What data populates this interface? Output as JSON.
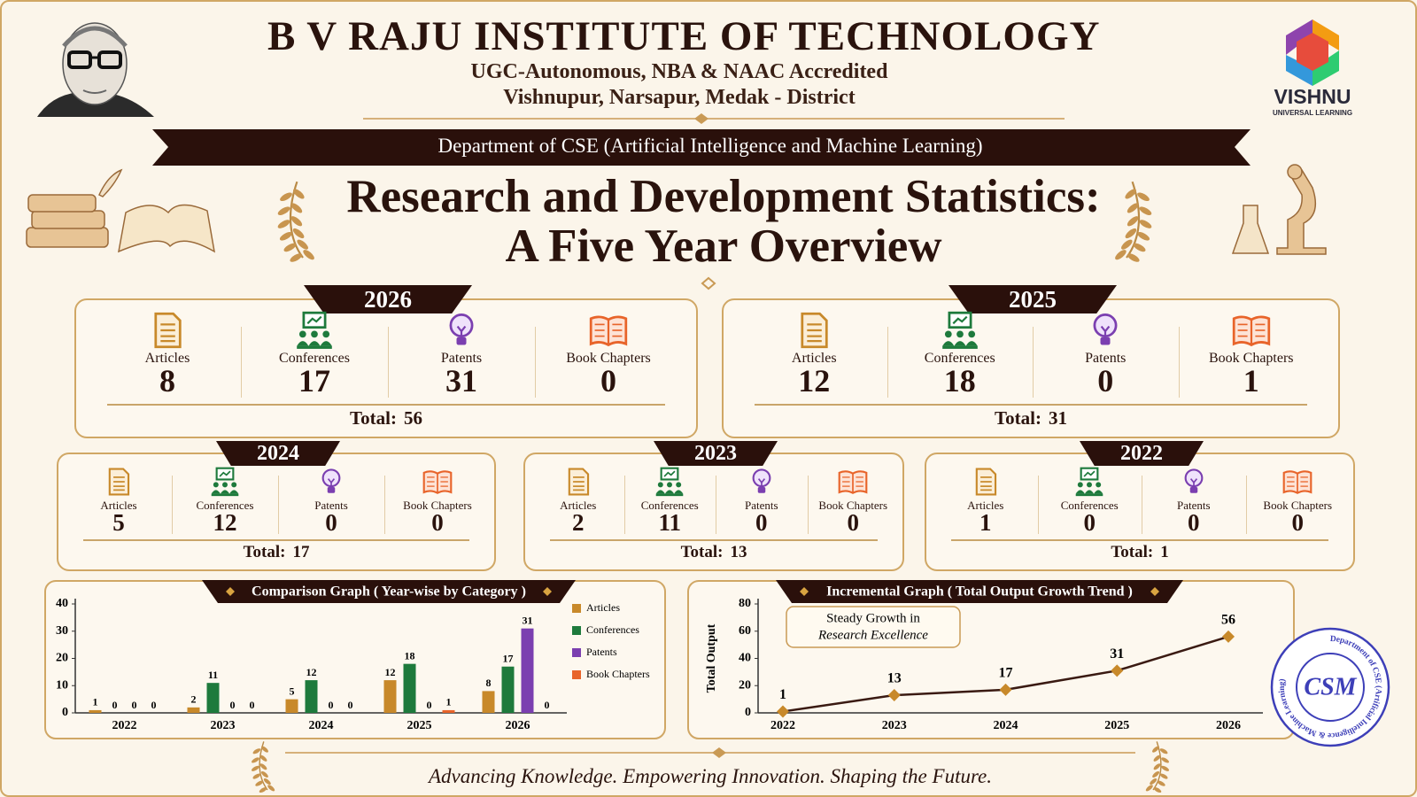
{
  "header": {
    "title": "B V RAJU INSTITUTE OF TECHNOLOGY",
    "accreditation": "UGC-Autonomous, NBA & NAAC Accredited",
    "address": "Vishnupur, Narsapur, Medak - District",
    "department": "Department of CSE (Artificial Intelligence and Machine Learning)",
    "main_title": [
      "Research and Development Statistics:",
      "A Five Year Overview"
    ]
  },
  "logo": {
    "name": "VISHNU",
    "tagline": "UNIVERSAL LEARNING"
  },
  "years": [
    {
      "year": "2026",
      "items": [
        {
          "label": "Articles",
          "value": 8
        },
        {
          "label": "Conferences",
          "value": 17
        },
        {
          "label": "Patents",
          "value": 31
        },
        {
          "label": "Book Chapters",
          "value": 0
        }
      ],
      "total_label": "Total:",
      "total": 56
    },
    {
      "year": "2025",
      "items": [
        {
          "label": "Articles",
          "value": 12
        },
        {
          "label": "Conferences",
          "value": 18
        },
        {
          "label": "Patents",
          "value": 0
        },
        {
          "label": "Book Chapters",
          "value": 1
        }
      ],
      "total_label": "Total:",
      "total": 31
    },
    {
      "year": "2024",
      "items": [
        {
          "label": "Articles",
          "value": 5
        },
        {
          "label": "Conferences",
          "value": 12
        },
        {
          "label": "Patents",
          "value": 0
        },
        {
          "label": "Book Chapters",
          "value": 0
        }
      ],
      "total_label": "Total:",
      "total": 17
    },
    {
      "year": "2023",
      "items": [
        {
          "label": "Articles",
          "value": 2
        },
        {
          "label": "Conferences",
          "value": 11
        },
        {
          "label": "Patents",
          "value": 0
        },
        {
          "label": "Book Chapters",
          "value": 0
        }
      ],
      "total_label": "Total:",
      "total": 13
    },
    {
      "year": "2022",
      "items": [
        {
          "label": "Articles",
          "value": 1
        },
        {
          "label": "Conferences",
          "value": 0
        },
        {
          "label": "Patents",
          "value": 0
        },
        {
          "label": "Book Chapters",
          "value": 0
        }
      ],
      "total_label": "Total:",
      "total": 1
    }
  ],
  "chart_data": [
    {
      "type": "bar",
      "title": "Comparison Graph ( Year-wise by Category )",
      "categories": [
        "2022",
        "2023",
        "2024",
        "2025",
        "2026"
      ],
      "series": [
        {
          "name": "Articles",
          "color": "#c8892a",
          "values": [
            1,
            2,
            5,
            12,
            8
          ]
        },
        {
          "name": "Conferences",
          "color": "#1e7a3c",
          "values": [
            0,
            11,
            12,
            18,
            17
          ]
        },
        {
          "name": "Patents",
          "color": "#7b3fb0",
          "values": [
            0,
            0,
            0,
            0,
            31
          ]
        },
        {
          "name": "Book Chapters",
          "color": "#e8642a",
          "values": [
            0,
            0,
            0,
            1,
            0
          ]
        }
      ],
      "ylim": [
        0,
        40
      ],
      "yticks": [
        0,
        10,
        20,
        30,
        40
      ]
    },
    {
      "type": "line",
      "title": "Incremental Graph ( Total Output Growth Trend )",
      "y_label": "Total Output",
      "categories": [
        "2022",
        "2023",
        "2024",
        "2025",
        "2026"
      ],
      "values": [
        1,
        13,
        17,
        31,
        56
      ],
      "color": "#3a1a12",
      "marker_color": "#c8892a",
      "ylim": [
        0,
        80
      ],
      "yticks": [
        0,
        20,
        40,
        60,
        80
      ],
      "annotation": [
        "Steady Growth in",
        "Research Excellence"
      ]
    }
  ],
  "stamp": {
    "center": "CSM",
    "ring": "Department of CSE (Artificial Intelligence & Machine Learning)"
  },
  "footer": "Advancing Knowledge.  Empowering Innovation.  Shaping the Future."
}
